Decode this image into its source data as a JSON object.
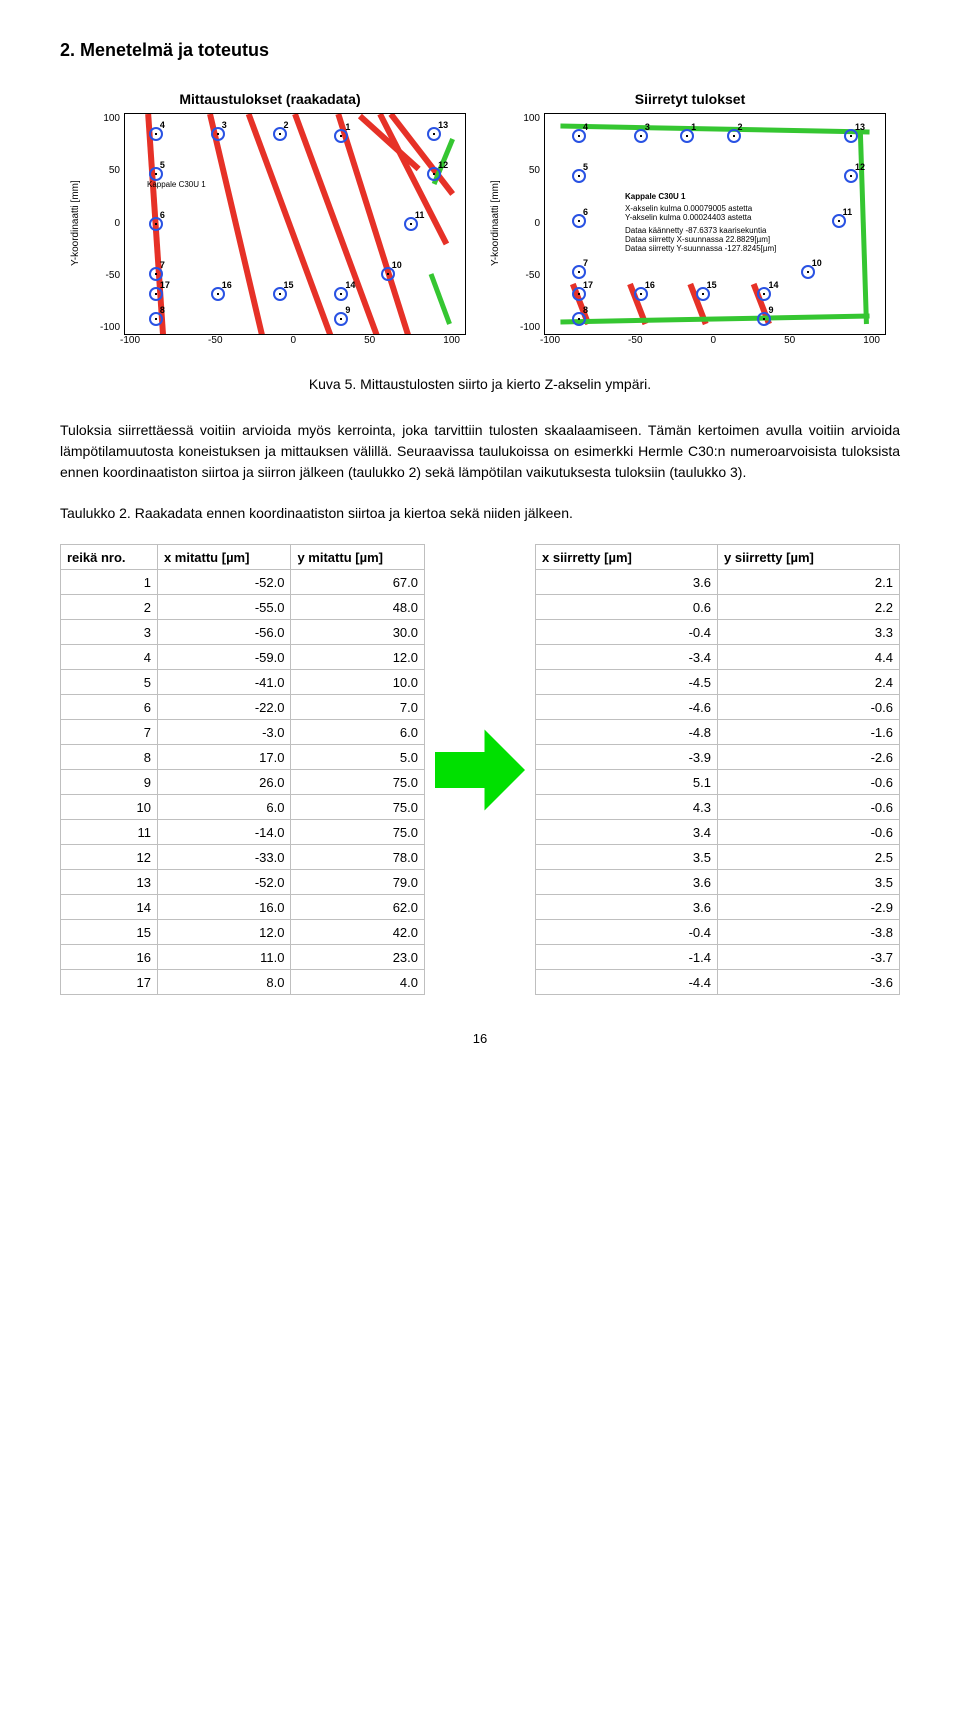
{
  "heading": "2. Menetelmä ja toteutus",
  "caption": "Kuva 5. Mittaustulosten siirto ja kierto Z-akselin ympäri.",
  "paragraph1": "Tuloksia siirrettäessä voitiin arvioida myös kerrointa, joka tarvittiin tulosten skaalaamiseen. Tämän kertoimen avulla voitiin arvioida lämpötilamuutosta koneistuksen ja mittauksen välillä. Seuraavissa taulukoissa on esimerkki Hermle C30:n numeroarvoisista tuloksista ennen koordinaatiston siirtoa ja siirron jälkeen (taulukko 2) sekä lämpötilan vaikutuksesta tuloksiin (taulukko 3).",
  "table_caption": "Taulukko 2. Raakadata ennen koordinaatiston siirtoa ja kiertoa sekä niiden jälkeen.",
  "chart_left": {
    "title": "Mittaustulokset (raakadata)",
    "ylabel": "Y-koordinaatti [mm]",
    "panel_label": "Kappale C30U 1"
  },
  "chart_right": {
    "title": "Siirretyt tulokset",
    "ylabel": "Y-koordinaatti [mm]",
    "panel_label": "Kappale C30U 1",
    "panel_sub1": "X-akselin kulma 0.00079005 astetta",
    "panel_sub2": "Y-akselin kulma 0.00024403 astetta",
    "panel_sub3": "Dataa käännetty -87.6373 kaarisekuntia",
    "panel_sub4": "Dataa siirretty X-suunnassa 22.8829[µm]",
    "panel_sub5": "Dataa siirretty Y-suunnassa -127.8245[µm]"
  },
  "yticks": [
    "100",
    "50",
    "0",
    "-50",
    "-100"
  ],
  "xticks": [
    "-100",
    "-50",
    "0",
    "50",
    "100"
  ],
  "marker_border": "#2952e3",
  "red_line_color": "#e63127",
  "green_line_color": "#35c631",
  "left_points": [
    {
      "n": "4",
      "x": -90,
      "y": 90
    },
    {
      "n": "3",
      "x": -50,
      "y": 90
    },
    {
      "n": "2",
      "x": -10,
      "y": 90
    },
    {
      "n": "1",
      "x": 30,
      "y": 88
    },
    {
      "n": "13",
      "x": 90,
      "y": 90
    },
    {
      "n": "5",
      "x": -90,
      "y": 50
    },
    {
      "n": "12",
      "x": 90,
      "y": 50
    },
    {
      "n": "6",
      "x": -90,
      "y": 0
    },
    {
      "n": "11",
      "x": 75,
      "y": 0
    },
    {
      "n": "7",
      "x": -90,
      "y": -50
    },
    {
      "n": "10",
      "x": 60,
      "y": -50
    },
    {
      "n": "17",
      "x": -90,
      "y": -70
    },
    {
      "n": "16",
      "x": -50,
      "y": -70
    },
    {
      "n": "15",
      "x": -10,
      "y": -70
    },
    {
      "n": "14",
      "x": 30,
      "y": -70
    },
    {
      "n": "8",
      "x": -90,
      "y": -95
    },
    {
      "n": "9",
      "x": 30,
      "y": -95
    }
  ],
  "right_points": [
    {
      "n": "4",
      "x": -88,
      "y": 88
    },
    {
      "n": "3",
      "x": -48,
      "y": 88
    },
    {
      "n": "1",
      "x": -18,
      "y": 88
    },
    {
      "n": "2",
      "x": 12,
      "y": 88
    },
    {
      "n": "13",
      "x": 88,
      "y": 88
    },
    {
      "n": "5",
      "x": -88,
      "y": 48
    },
    {
      "n": "12",
      "x": 88,
      "y": 48
    },
    {
      "n": "6",
      "x": -88,
      "y": 3
    },
    {
      "n": "11",
      "x": 80,
      "y": 3
    },
    {
      "n": "7",
      "x": -88,
      "y": -48
    },
    {
      "n": "10",
      "x": 60,
      "y": -48
    },
    {
      "n": "17",
      "x": -88,
      "y": -70
    },
    {
      "n": "16",
      "x": -48,
      "y": -70
    },
    {
      "n": "15",
      "x": -8,
      "y": -70
    },
    {
      "n": "14",
      "x": 32,
      "y": -70
    },
    {
      "n": "8",
      "x": -88,
      "y": -95
    },
    {
      "n": "9",
      "x": 32,
      "y": -95
    }
  ],
  "left_red_lines": [
    [
      [
        -95,
        110
      ],
      [
        -85,
        -120
      ]
    ],
    [
      [
        -55,
        110
      ],
      [
        -20,
        -120
      ]
    ],
    [
      [
        -30,
        110
      ],
      [
        25,
        -120
      ]
    ],
    [
      [
        0,
        110
      ],
      [
        55,
        -120
      ]
    ],
    [
      [
        28,
        110
      ],
      [
        75,
        -120
      ]
    ],
    [
      [
        42,
        108
      ],
      [
        80,
        55
      ]
    ],
    [
      [
        55,
        110
      ],
      [
        98,
        -20
      ]
    ],
    [
      [
        62,
        110
      ],
      [
        102,
        30
      ]
    ]
  ],
  "left_green_lines": [
    [
      [
        90,
        40
      ],
      [
        102,
        85
      ]
    ],
    [
      [
        88,
        -50
      ],
      [
        100,
        -100
      ]
    ]
  ],
  "right_red_lines": [
    [
      [
        -92,
        -60
      ],
      [
        -82,
        -100
      ]
    ],
    [
      [
        -55,
        -60
      ],
      [
        -45,
        -100
      ]
    ],
    [
      [
        -16,
        -60
      ],
      [
        -6,
        -100
      ]
    ],
    [
      [
        25,
        -60
      ],
      [
        35,
        -100
      ]
    ]
  ],
  "right_green_lines": [
    [
      [
        -100,
        98
      ],
      [
        100,
        92
      ]
    ],
    [
      [
        -100,
        -98
      ],
      [
        100,
        -92
      ]
    ],
    [
      [
        94,
        95
      ],
      [
        98,
        -100
      ]
    ]
  ],
  "table": {
    "headers_left": [
      "reikä nro.",
      "x mitattu [µm]",
      "y mitattu [µm]"
    ],
    "headers_right": [
      "x siirretty [µm]",
      "y siirretty [µm]"
    ],
    "rows": [
      {
        "n": "1",
        "xm": "-52.0",
        "ym": "67.0",
        "xs": "3.6",
        "ys": "2.1"
      },
      {
        "n": "2",
        "xm": "-55.0",
        "ym": "48.0",
        "xs": "0.6",
        "ys": "2.2"
      },
      {
        "n": "3",
        "xm": "-56.0",
        "ym": "30.0",
        "xs": "-0.4",
        "ys": "3.3"
      },
      {
        "n": "4",
        "xm": "-59.0",
        "ym": "12.0",
        "xs": "-3.4",
        "ys": "4.4"
      },
      {
        "n": "5",
        "xm": "-41.0",
        "ym": "10.0",
        "xs": "-4.5",
        "ys": "2.4"
      },
      {
        "n": "6",
        "xm": "-22.0",
        "ym": "7.0",
        "xs": "-4.6",
        "ys": "-0.6"
      },
      {
        "n": "7",
        "xm": "-3.0",
        "ym": "6.0",
        "xs": "-4.8",
        "ys": "-1.6"
      },
      {
        "n": "8",
        "xm": "17.0",
        "ym": "5.0",
        "xs": "-3.9",
        "ys": "-2.6"
      },
      {
        "n": "9",
        "xm": "26.0",
        "ym": "75.0",
        "xs": "5.1",
        "ys": "-0.6"
      },
      {
        "n": "10",
        "xm": "6.0",
        "ym": "75.0",
        "xs": "4.3",
        "ys": "-0.6"
      },
      {
        "n": "11",
        "xm": "-14.0",
        "ym": "75.0",
        "xs": "3.4",
        "ys": "-0.6"
      },
      {
        "n": "12",
        "xm": "-33.0",
        "ym": "78.0",
        "xs": "3.5",
        "ys": "2.5"
      },
      {
        "n": "13",
        "xm": "-52.0",
        "ym": "79.0",
        "xs": "3.6",
        "ys": "3.5"
      },
      {
        "n": "14",
        "xm": "16.0",
        "ym": "62.0",
        "xs": "3.6",
        "ys": "-2.9"
      },
      {
        "n": "15",
        "xm": "12.0",
        "ym": "42.0",
        "xs": "-0.4",
        "ys": "-3.8"
      },
      {
        "n": "16",
        "xm": "11.0",
        "ym": "23.0",
        "xs": "-1.4",
        "ys": "-3.7"
      },
      {
        "n": "17",
        "xm": "8.0",
        "ym": "4.0",
        "xs": "-4.4",
        "ys": "-3.6"
      }
    ]
  },
  "arrow_color": "#00e000",
  "page_number": "16"
}
